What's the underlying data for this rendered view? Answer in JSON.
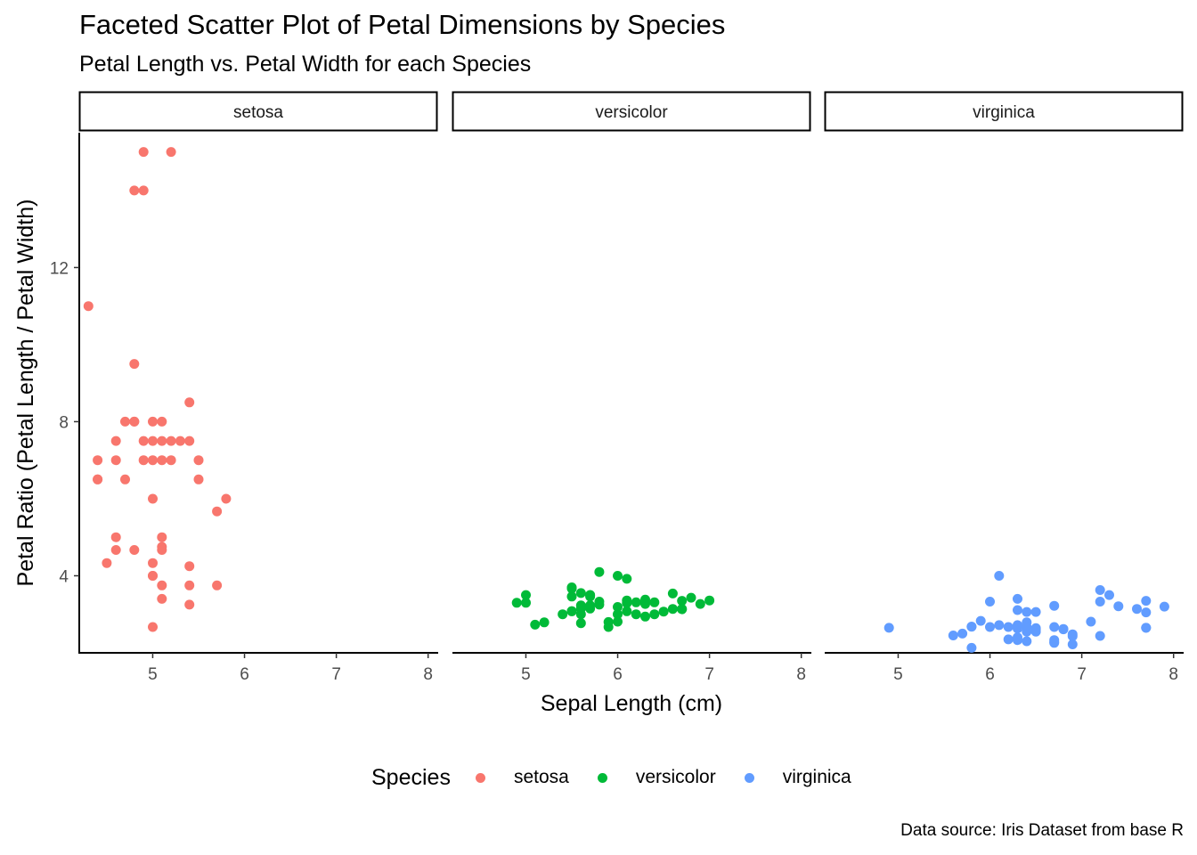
{
  "title": "Faceted Scatter Plot of Petal Dimensions by Species",
  "subtitle": "Petal Length vs. Petal Width for each Species",
  "caption": "Data source: Iris Dataset from base R",
  "legend": {
    "title": "Species",
    "items": [
      {
        "label": "setosa",
        "color": "#F8766D"
      },
      {
        "label": "versicolor",
        "color": "#00BA38"
      },
      {
        "label": "virginica",
        "color": "#619CFF"
      }
    ]
  },
  "chart_data": {
    "type": "scatter",
    "title": "Faceted Scatter Plot of Petal Dimensions by Species",
    "subtitle": "Petal Length vs. Petal Width for each Species",
    "xlabel": "Sepal Length (cm)",
    "ylabel": "Petal Ratio (Petal Length / Petal Width)",
    "xlim": [
      4.2,
      8.1
    ],
    "ylim": [
      2.0,
      15.5
    ],
    "xticks": [
      5,
      6,
      7,
      8
    ],
    "yticks": [
      4,
      8,
      12
    ],
    "grid": false,
    "legend_position": "bottom",
    "facets": [
      {
        "name": "setosa",
        "color": "#F8766D",
        "points": [
          [
            5.1,
            7
          ],
          [
            4.9,
            7
          ],
          [
            4.7,
            6.5
          ],
          [
            4.6,
            7.5
          ],
          [
            5.0,
            7
          ],
          [
            5.4,
            4.25
          ],
          [
            4.6,
            4.67
          ],
          [
            5.0,
            7.5
          ],
          [
            4.4,
            7
          ],
          [
            4.9,
            15
          ],
          [
            5.4,
            7.5
          ],
          [
            4.8,
            8
          ],
          [
            4.8,
            14
          ],
          [
            4.3,
            11
          ],
          [
            5.8,
            6
          ],
          [
            5.7,
            3.75
          ],
          [
            5.4,
            3.25
          ],
          [
            5.1,
            4.67
          ],
          [
            5.7,
            5.67
          ],
          [
            5.1,
            5
          ],
          [
            5.4,
            8.5
          ],
          [
            5.1,
            3.75
          ],
          [
            4.6,
            5
          ],
          [
            5.1,
            3.4
          ],
          [
            4.8,
            9.5
          ],
          [
            5.0,
            8
          ],
          [
            5.0,
            4
          ],
          [
            5.2,
            7.5
          ],
          [
            5.2,
            7
          ],
          [
            4.7,
            8
          ],
          [
            4.8,
            8
          ],
          [
            5.4,
            3.75
          ],
          [
            5.2,
            15
          ],
          [
            5.5,
            7
          ],
          [
            4.9,
            7.5
          ],
          [
            5.0,
            6
          ],
          [
            5.5,
            6.5
          ],
          [
            4.9,
            14
          ],
          [
            4.4,
            6.5
          ],
          [
            5.1,
            7.5
          ],
          [
            5.0,
            4.33
          ],
          [
            4.5,
            4.33
          ],
          [
            4.4,
            6.5
          ],
          [
            5.0,
            4
          ],
          [
            5.1,
            4.75
          ],
          [
            4.8,
            4.67
          ],
          [
            5.1,
            8
          ],
          [
            4.6,
            7
          ],
          [
            5.3,
            7.5
          ],
          [
            5.0,
            2.67
          ]
        ]
      },
      {
        "name": "versicolor",
        "color": "#00BA38",
        "points": [
          [
            7.0,
            3.36
          ],
          [
            6.4,
            3.0
          ],
          [
            6.9,
            3.27
          ],
          [
            5.5,
            3.08
          ],
          [
            6.5,
            3.07
          ],
          [
            5.7,
            3.46
          ],
          [
            6.3,
            2.94
          ],
          [
            4.9,
            3.3
          ],
          [
            6.6,
            3.54
          ],
          [
            5.2,
            2.79
          ],
          [
            5.0,
            3.5
          ],
          [
            5.9,
            2.8
          ],
          [
            6.0,
            4.0
          ],
          [
            6.1,
            3.36
          ],
          [
            5.6,
            2.77
          ],
          [
            6.7,
            3.14
          ],
          [
            5.6,
            3.0
          ],
          [
            5.8,
            4.1
          ],
          [
            6.2,
            3.0
          ],
          [
            5.6,
            3.55
          ],
          [
            5.9,
            2.67
          ],
          [
            6.1,
            3.08
          ],
          [
            6.3,
            3.27
          ],
          [
            6.1,
            3.92
          ],
          [
            6.4,
            3.31
          ],
          [
            6.6,
            3.14
          ],
          [
            6.8,
            3.43
          ],
          [
            6.7,
            3.35
          ],
          [
            6.0,
            3.0
          ],
          [
            5.7,
            3.5
          ],
          [
            5.5,
            3.46
          ],
          [
            5.5,
            3.7
          ],
          [
            5.8,
            3.25
          ],
          [
            6.0,
            3.19
          ],
          [
            5.4,
            3.0
          ],
          [
            6.0,
            2.81
          ],
          [
            6.7,
            3.13
          ],
          [
            6.3,
            3.38
          ],
          [
            5.6,
            3.15
          ],
          [
            5.5,
            3.08
          ],
          [
            5.5,
            3.67
          ],
          [
            6.1,
            3.29
          ],
          [
            5.8,
            3.33
          ],
          [
            5.0,
            3.3
          ],
          [
            5.6,
            3.23
          ],
          [
            5.7,
            3.5
          ],
          [
            5.7,
            3.23
          ],
          [
            6.2,
            3.31
          ],
          [
            5.1,
            2.73
          ],
          [
            5.7,
            3.15
          ]
        ]
      },
      {
        "name": "virginica",
        "color": "#619CFF",
        "points": [
          [
            6.3,
            2.4
          ],
          [
            5.8,
            2.68
          ],
          [
            7.1,
            2.81
          ],
          [
            6.3,
            3.11
          ],
          [
            6.5,
            2.64
          ],
          [
            7.6,
            3.14
          ],
          [
            4.9,
            2.65
          ],
          [
            7.3,
            3.5
          ],
          [
            6.7,
            3.22
          ],
          [
            7.2,
            2.44
          ],
          [
            6.5,
            2.55
          ],
          [
            6.4,
            2.79
          ],
          [
            6.8,
            2.62
          ],
          [
            5.7,
            2.5
          ],
          [
            5.8,
            2.13
          ],
          [
            6.4,
            2.3
          ],
          [
            6.5,
            3.06
          ],
          [
            7.7,
            3.05
          ],
          [
            7.7,
            2.65
          ],
          [
            6.0,
            3.33
          ],
          [
            6.9,
            2.48
          ],
          [
            5.6,
            2.45
          ],
          [
            7.7,
            3.35
          ],
          [
            6.3,
            2.72
          ],
          [
            6.7,
            2.67
          ],
          [
            7.2,
            3.33
          ],
          [
            6.2,
            2.67
          ],
          [
            6.1,
            2.72
          ],
          [
            6.4,
            2.67
          ],
          [
            7.2,
            3.63
          ],
          [
            7.4,
            3.21
          ],
          [
            7.9,
            3.2
          ],
          [
            6.4,
            2.55
          ],
          [
            6.3,
            3.4
          ],
          [
            6.1,
            4.0
          ],
          [
            7.7,
            2.65
          ],
          [
            6.3,
            2.33
          ],
          [
            6.4,
            3.06
          ],
          [
            6.0,
            2.67
          ],
          [
            6.9,
            2.43
          ],
          [
            6.7,
            2.33
          ],
          [
            6.9,
            2.22
          ],
          [
            5.8,
            2.68
          ],
          [
            6.8,
            2.61
          ],
          [
            6.7,
            2.28
          ],
          [
            6.7,
            2.26
          ],
          [
            6.3,
            2.63
          ],
          [
            6.5,
            2.6
          ],
          [
            6.2,
            2.35
          ],
          [
            5.9,
            2.83
          ]
        ]
      }
    ]
  }
}
